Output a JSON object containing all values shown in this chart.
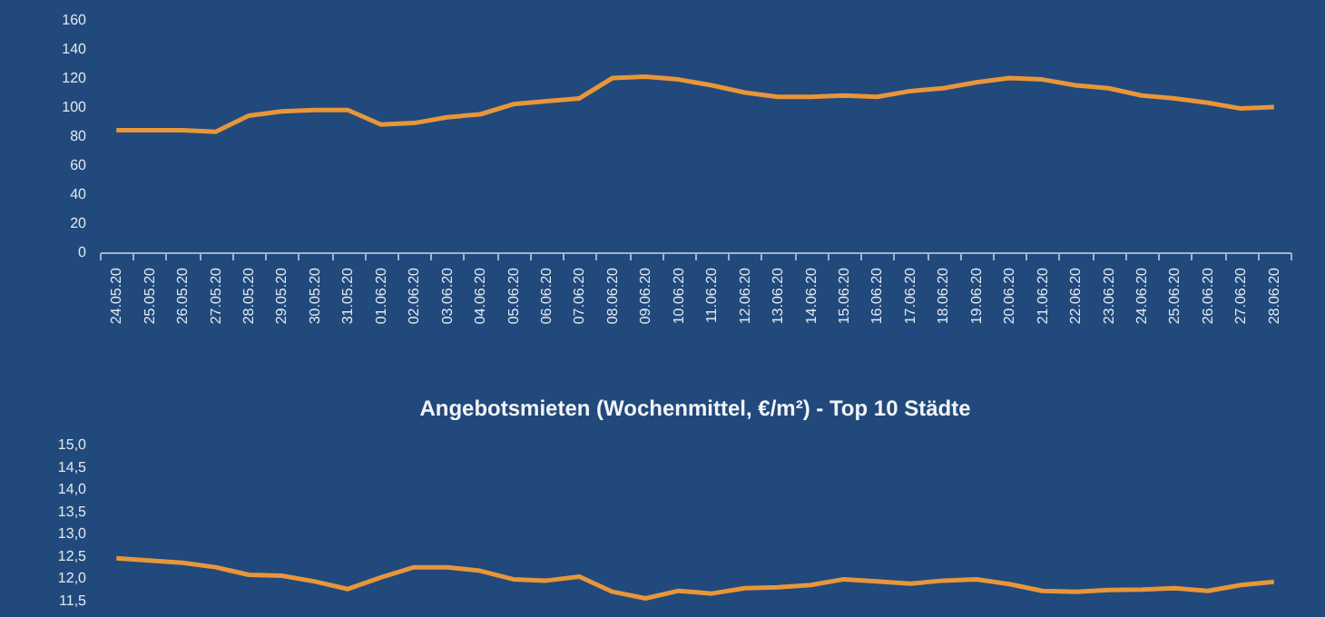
{
  "chart_data": [
    {
      "type": "line",
      "categories": [
        "24.05.20",
        "25.05.20",
        "26.05.20",
        "27.05.20",
        "28.05.20",
        "29.05.20",
        "30.05.20",
        "31.05.20",
        "01.06.20",
        "02.06.20",
        "03.06.20",
        "04.06.20",
        "05.06.20",
        "06.06.20",
        "07.06.20",
        "08.06.20",
        "09.06.20",
        "10.06.20",
        "11.06.20",
        "12.06.20",
        "13.06.20",
        "14.06.20",
        "15.06.20",
        "16.06.20",
        "17.06.20",
        "18.06.20",
        "19.06.20",
        "20.06.20",
        "21.06.20",
        "22.06.20",
        "23.06.20",
        "24.06.20",
        "25.06.20",
        "26.06.20",
        "27.06.20",
        "28.06.20"
      ],
      "values": [
        84,
        84,
        84,
        83,
        94,
        97,
        98,
        98,
        88,
        89,
        93,
        95,
        102,
        104,
        106,
        120,
        121,
        119,
        115,
        110,
        107,
        107,
        108,
        107,
        111,
        113,
        117,
        120,
        119,
        115,
        113,
        108,
        106,
        103,
        99,
        100
      ],
      "color": "#e8963a",
      "ylim": [
        0,
        160
      ],
      "yticks": [
        0,
        20,
        40,
        60,
        80,
        100,
        120,
        140,
        160
      ]
    },
    {
      "type": "line",
      "title": "Angebotsmieten (Wochenmittel, €/m²) - Top 10 Städte",
      "categories": [
        null,
        null,
        null,
        null,
        null,
        null,
        null,
        null,
        null,
        null,
        null,
        null,
        null,
        null,
        null,
        null,
        null,
        null,
        null,
        null,
        null,
        null,
        null,
        null,
        null,
        null,
        null,
        null,
        null,
        null,
        null,
        null,
        null,
        null,
        null,
        null
      ],
      "values": [
        12.45,
        12.4,
        12.35,
        12.25,
        12.08,
        12.06,
        11.93,
        11.76,
        12.02,
        12.25,
        12.25,
        12.17,
        11.98,
        11.95,
        12.04,
        11.7,
        11.55,
        11.72,
        11.66,
        11.78,
        11.8,
        11.85,
        11.98,
        11.93,
        11.88,
        11.95,
        11.98,
        11.87,
        11.72,
        11.7,
        11.74,
        11.75,
        11.78,
        11.72,
        11.85,
        11.92
      ],
      "color": "#e8963a",
      "ylim": [
        11.5,
        15
      ],
      "yticks": [
        {
          "value": 11.5,
          "label": "11,5"
        },
        {
          "value": 12,
          "label": "12,0"
        },
        {
          "value": 12.5,
          "label": "12,5"
        },
        {
          "value": 13,
          "label": "13,0"
        },
        {
          "value": 13.5,
          "label": "13,5"
        },
        {
          "value": 14,
          "label": "14,0"
        },
        {
          "value": 14.5,
          "label": "14,5"
        },
        {
          "value": 15,
          "label": "15,0"
        }
      ],
      "tick_labels": "y"
    }
  ]
}
